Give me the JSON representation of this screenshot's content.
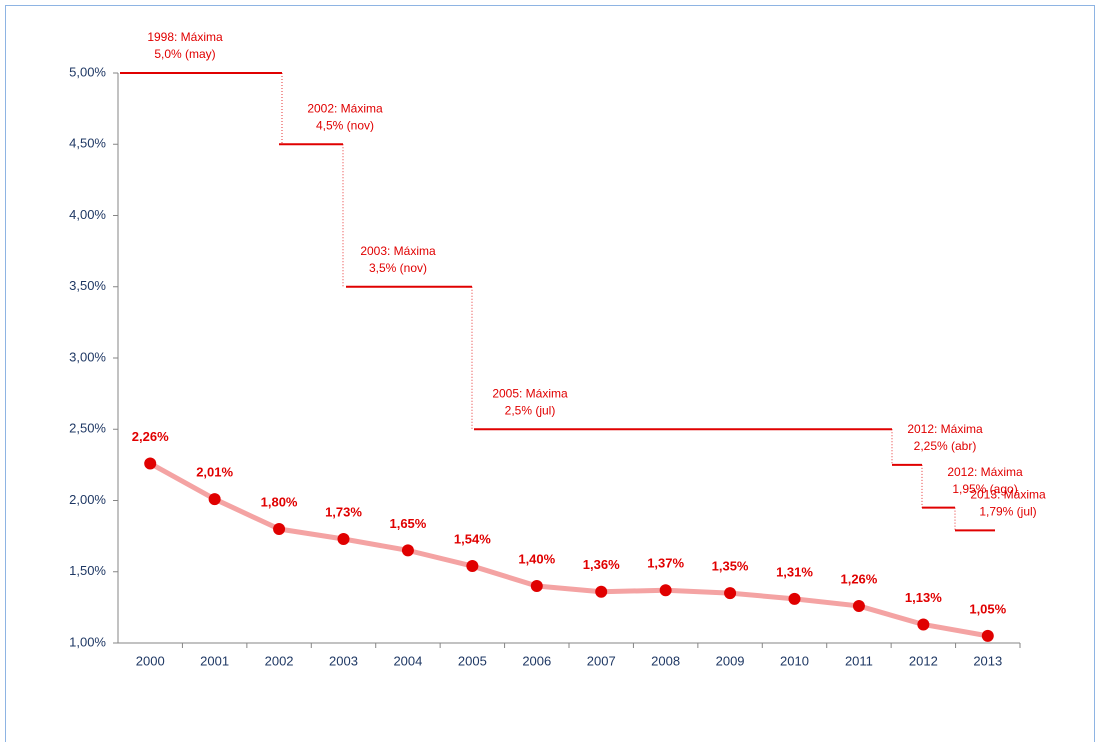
{
  "chart_data": {
    "type": "line",
    "categories": [
      "2000",
      "2001",
      "2002",
      "2003",
      "2004",
      "2005",
      "2006",
      "2007",
      "2008",
      "2009",
      "2010",
      "2011",
      "2012",
      "2013"
    ],
    "series": [
      {
        "color": "#e00000",
        "line_color": "#f4a3a3",
        "values": [
          2.26,
          2.01,
          1.8,
          1.73,
          1.65,
          1.54,
          1.4,
          1.36,
          1.37,
          1.35,
          1.31,
          1.26,
          1.13,
          1.05
        ],
        "value_labels": [
          "2,26%",
          "2,01%",
          "1,80%",
          "1,73%",
          "1,65%",
          "1,54%",
          "1,40%",
          "1,36%",
          "1,37%",
          "1,35%",
          "1,31%",
          "1,26%",
          "1,13%",
          "1,05%"
        ]
      }
    ],
    "steps": {
      "color": "#e00000",
      "values": [
        5.0,
        4.5,
        3.5,
        2.5,
        2.25,
        1.95,
        1.79
      ],
      "labels": [
        [
          "1998: Máxima",
          "5,0% (may)"
        ],
        [
          "2002: Máxima",
          "4,5% (nov)"
        ],
        [
          "2003: Máxima",
          "3,5% (nov)"
        ],
        [
          "2005: Máxima",
          "2,5% (jul)"
        ],
        [
          "2012: Máxima",
          "2,25% (abr)"
        ],
        [
          "2012: Máxima",
          "1,95% (ago)"
        ],
        [
          "2013: Máxima",
          "1,79% (jul)"
        ]
      ]
    },
    "ylim": [
      1,
      5
    ],
    "yticks": [
      {
        "value": 1,
        "label": "1,00%"
      },
      {
        "value": 1.5,
        "label": "1,50%"
      },
      {
        "value": 2,
        "label": "2,00%"
      },
      {
        "value": 2.5,
        "label": "2,50%"
      },
      {
        "value": 3,
        "label": "3,00%"
      },
      {
        "value": 3.5,
        "label": "3,50%"
      },
      {
        "value": 4,
        "label": "4,00%"
      },
      {
        "value": 4.5,
        "label": "4,50%"
      },
      {
        "value": 5,
        "label": "5,00%"
      }
    ],
    "grid": false
  }
}
